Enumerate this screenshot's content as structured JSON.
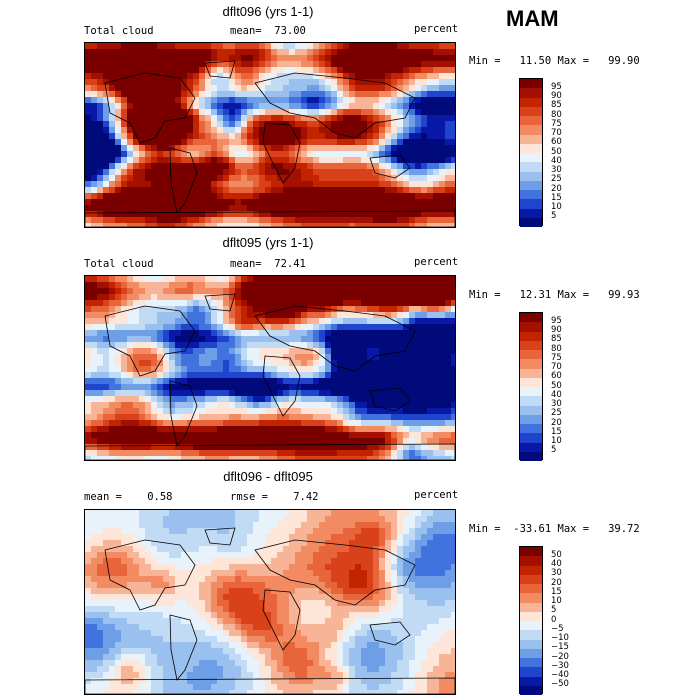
{
  "season": "MAM",
  "panels": [
    {
      "title": "dflt096 (yrs 1-1)",
      "left_label": "Total cloud",
      "mid_label": "mean=  73.00",
      "right_label": "percent",
      "minmax": "Min =   11.50 Max =   99.90",
      "cbar_labels": [
        "95",
        "90",
        "85",
        "80",
        "75",
        "70",
        "60",
        "50",
        "40",
        "30",
        "25",
        "20",
        "15",
        "10",
        "5"
      ],
      "cbar_colors": [
        "#7a0000",
        "#a30f00",
        "#c22400",
        "#d9411a",
        "#e8653b",
        "#f28a62",
        "#f8b497",
        "#fde5d8",
        "#e8f2fb",
        "#c2dbf5",
        "#99c0ef",
        "#6e9ee6",
        "#4272de",
        "#1f45cf",
        "#0a18a8",
        "#000a7a"
      ]
    },
    {
      "title": "dflt095 (yrs 1-1)",
      "left_label": "Total cloud",
      "mid_label": "mean=  72.41",
      "right_label": "percent",
      "minmax": "Min =   12.31 Max =   99.93",
      "cbar_labels": [
        "95",
        "90",
        "85",
        "80",
        "75",
        "70",
        "60",
        "50",
        "40",
        "30",
        "25",
        "20",
        "15",
        "10",
        "5"
      ],
      "cbar_colors": [
        "#7a0000",
        "#a30f00",
        "#c22400",
        "#d9411a",
        "#e8653b",
        "#f28a62",
        "#f8b497",
        "#fde5d8",
        "#e8f2fb",
        "#c2dbf5",
        "#99c0ef",
        "#6e9ee6",
        "#4272de",
        "#1f45cf",
        "#0a18a8",
        "#000a7a"
      ]
    },
    {
      "title": "dflt096 - dflt095",
      "left_label": "mean =    0.58",
      "mid_label": "rmse =    7.42",
      "right_label": "percent",
      "minmax": "Min =  -33.61 Max =   39.72",
      "cbar_labels": [
        "50",
        "40",
        "30",
        "20",
        "15",
        "10",
        "5",
        "0",
        "−5",
        "−10",
        "−15",
        "−20",
        "−30",
        "−40",
        "−50"
      ],
      "cbar_colors": [
        "#7a0000",
        "#a30f00",
        "#c22400",
        "#d9411a",
        "#e8653b",
        "#f28a62",
        "#f8b497",
        "#fde5d8",
        "#e8f2fb",
        "#c2dbf5",
        "#99c0ef",
        "#6e9ee6",
        "#4272de",
        "#1f45cf",
        "#0a18a8",
        "#000a7a"
      ]
    }
  ]
}
